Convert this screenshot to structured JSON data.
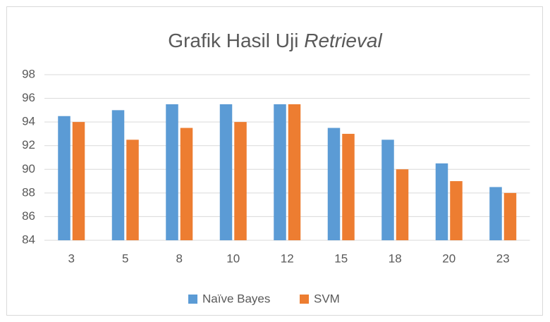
{
  "chart_data": {
    "type": "bar",
    "title": [
      "Grafik Hasil Uji",
      "Retrieval"
    ],
    "categories": [
      "3",
      "5",
      "8",
      "10",
      "12",
      "15",
      "18",
      "20",
      "23"
    ],
    "series": [
      {
        "name": "Naïve Bayes",
        "color": "#5b9bd5",
        "values": [
          94.5,
          95,
          95.5,
          95.5,
          95.5,
          93.5,
          92.5,
          90.5,
          88.5
        ]
      },
      {
        "name": "SVM",
        "color": "#ed7d31",
        "values": [
          94,
          92.5,
          93.5,
          94,
          95.5,
          93,
          90,
          89,
          88
        ]
      }
    ],
    "ylim": [
      84,
      98
    ],
    "yticks": [
      84,
      86,
      88,
      90,
      92,
      94,
      96,
      98
    ],
    "grid": true,
    "legend": "bottom"
  }
}
